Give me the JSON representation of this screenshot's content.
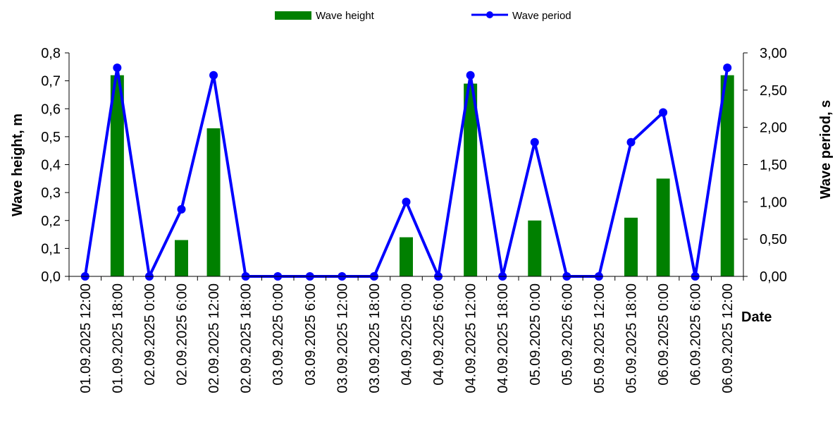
{
  "chart_data": {
    "type": "bar",
    "categories": [
      "01.09.2025 12:00",
      "01.09.2025 18:00",
      "02.09.2025 0:00",
      "02.09.2025 6:00",
      "02.09.2025 12:00",
      "02.09.2025 18:00",
      "03.09.2025 0:00",
      "03.09.2025 6:00",
      "03.09.2025 12:00",
      "03.09.2025 18:00",
      "04.09.2025 0:00",
      "04.09.2025 6:00",
      "04.09.2025 12:00",
      "04.09.2025 18:00",
      "05.09.2025 0:00",
      "05.09.2025 6:00",
      "05.09.2025 12:00",
      "05.09.2025 18:00",
      "06.09.2025 0:00",
      "06.09.2025 6:00",
      "06.09.2025 12:00"
    ],
    "series": [
      {
        "name": "Wave height",
        "type": "bar",
        "axis": "left",
        "color": "#008000",
        "values": [
          0,
          0.72,
          0,
          0.13,
          0.53,
          0,
          0,
          0,
          0,
          0,
          0.14,
          0,
          0.69,
          0,
          0.2,
          0,
          0,
          0.21,
          0.35,
          0,
          0.72
        ]
      },
      {
        "name": "Wave period",
        "type": "line",
        "axis": "right",
        "color": "#0000FF",
        "values": [
          0,
          2.8,
          0,
          0.9,
          2.7,
          0,
          0,
          0,
          0,
          0,
          1.0,
          0,
          2.7,
          0,
          1.8,
          0,
          0,
          1.8,
          2.2,
          0,
          2.8
        ]
      }
    ],
    "xlabel": "Date",
    "ylabel": "Wave height, m",
    "y2label": "Wave period, s",
    "ylim": [
      0,
      0.8
    ],
    "y2lim": [
      0,
      3.0
    ],
    "yticks": [
      "0,0",
      "0,1",
      "0,2",
      "0,3",
      "0,4",
      "0,5",
      "0,6",
      "0,7",
      "0,8"
    ],
    "y2ticks": [
      "0,00",
      "0,50",
      "1,00",
      "1,50",
      "2,00",
      "2,50",
      "3,00"
    ],
    "legend_position": "top-center",
    "grid": false
  }
}
